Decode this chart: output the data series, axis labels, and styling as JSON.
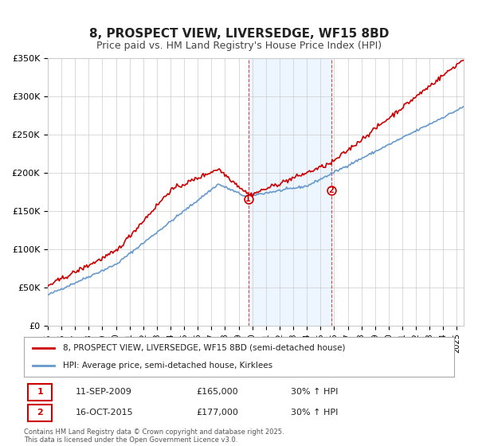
{
  "title": "8, PROSPECT VIEW, LIVERSEDGE, WF15 8BD",
  "subtitle": "Price paid vs. HM Land Registry's House Price Index (HPI)",
  "ylim": [
    0,
    350000
  ],
  "yticks": [
    0,
    50000,
    100000,
    150000,
    200000,
    250000,
    300000,
    350000
  ],
  "ytick_labels": [
    "£0",
    "£50K",
    "£100K",
    "£150K",
    "£200K",
    "£250K",
    "£300K",
    "£350K"
  ],
  "xlim_start": 1995.0,
  "xlim_end": 2025.5,
  "sale1_date": 2009.7,
  "sale1_price": 165000,
  "sale1_label": "1",
  "sale1_text": "11-SEP-2009",
  "sale1_hpi_change": "30% ↑ HPI",
  "sale2_date": 2015.8,
  "sale2_price": 177000,
  "sale2_label": "2",
  "sale2_text": "16-OCT-2015",
  "sale2_hpi_change": "30% ↑ HPI",
  "shade_color": "#ddeeff",
  "shade_alpha": 0.5,
  "line1_color": "#cc0000",
  "line2_color": "#6699cc",
  "background_color": "#ffffff",
  "grid_color": "#cccccc",
  "legend_line1": "8, PROSPECT VIEW, LIVERSEDGE, WF15 8BD (semi-detached house)",
  "legend_line2": "HPI: Average price, semi-detached house, Kirklees",
  "footnote": "Contains HM Land Registry data © Crown copyright and database right 2025.\nThis data is licensed under the Open Government Licence v3.0."
}
